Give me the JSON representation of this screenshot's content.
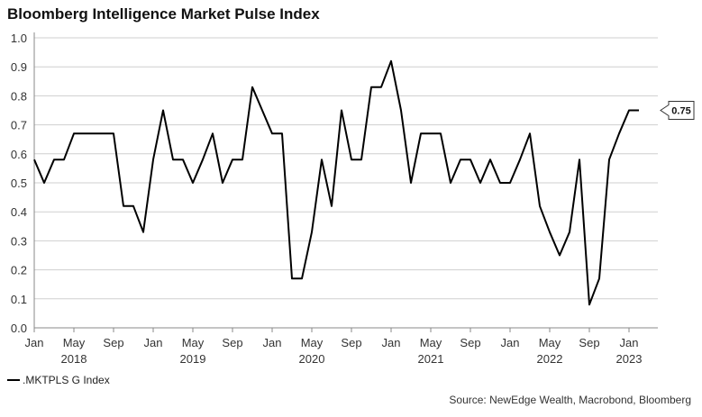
{
  "chart_data": {
    "type": "line",
    "title": "Bloomberg Intelligence Market Pulse Index",
    "xlabel": "",
    "ylabel": "",
    "ylim": [
      0.0,
      1.0
    ],
    "yticks": [
      "0.0",
      "0.1",
      "0.2",
      "0.3",
      "0.4",
      "0.5",
      "0.6",
      "0.7",
      "0.8",
      "0.9",
      "1.0"
    ],
    "x_month_ticks": [
      {
        "month": "2018-01",
        "label": "Jan"
      },
      {
        "month": "2018-05",
        "label": "May"
      },
      {
        "month": "2018-09",
        "label": "Sep"
      },
      {
        "month": "2019-01",
        "label": "Jan"
      },
      {
        "month": "2019-05",
        "label": "May"
      },
      {
        "month": "2019-09",
        "label": "Sep"
      },
      {
        "month": "2020-01",
        "label": "Jan"
      },
      {
        "month": "2020-05",
        "label": "May"
      },
      {
        "month": "2020-09",
        "label": "Sep"
      },
      {
        "month": "2021-01",
        "label": "Jan"
      },
      {
        "month": "2021-05",
        "label": "May"
      },
      {
        "month": "2021-09",
        "label": "Sep"
      },
      {
        "month": "2022-01",
        "label": "Jan"
      },
      {
        "month": "2022-05",
        "label": "May"
      },
      {
        "month": "2022-09",
        "label": "Sep"
      },
      {
        "month": "2023-01",
        "label": "Jan"
      }
    ],
    "x_year_labels": [
      {
        "month": "2018-05",
        "label": "2018"
      },
      {
        "month": "2019-05",
        "label": "2019"
      },
      {
        "month": "2020-05",
        "label": "2020"
      },
      {
        "month": "2021-05",
        "label": "2021"
      },
      {
        "month": "2022-05",
        "label": "2022"
      },
      {
        "month": "2023-01",
        "label": "2023"
      }
    ],
    "grid": true,
    "legend_position": "bottom-left",
    "series": [
      {
        "name": ".MKTPLS G Index",
        "color": "#000000",
        "x": [
          "2018-01",
          "2018-02",
          "2018-03",
          "2018-04",
          "2018-05",
          "2018-06",
          "2018-07",
          "2018-08",
          "2018-09",
          "2018-10",
          "2018-11",
          "2018-12",
          "2019-01",
          "2019-02",
          "2019-03",
          "2019-04",
          "2019-05",
          "2019-06",
          "2019-07",
          "2019-08",
          "2019-09",
          "2019-10",
          "2019-11",
          "2019-12",
          "2020-01",
          "2020-02",
          "2020-03",
          "2020-04",
          "2020-05",
          "2020-06",
          "2020-07",
          "2020-08",
          "2020-09",
          "2020-10",
          "2020-11",
          "2020-12",
          "2021-01",
          "2021-02",
          "2021-03",
          "2021-04",
          "2021-05",
          "2021-06",
          "2021-07",
          "2021-08",
          "2021-09",
          "2021-10",
          "2021-11",
          "2021-12",
          "2022-01",
          "2022-02",
          "2022-03",
          "2022-04",
          "2022-05",
          "2022-06",
          "2022-07",
          "2022-08",
          "2022-09",
          "2022-10",
          "2022-11",
          "2022-12",
          "2023-01",
          "2023-02"
        ],
        "values": [
          0.58,
          0.5,
          0.58,
          0.58,
          0.67,
          0.67,
          0.67,
          0.67,
          0.67,
          0.42,
          0.42,
          0.33,
          0.58,
          0.75,
          0.58,
          0.58,
          0.5,
          0.58,
          0.67,
          0.5,
          0.58,
          0.58,
          0.83,
          0.75,
          0.67,
          0.67,
          0.17,
          0.17,
          0.33,
          0.58,
          0.42,
          0.75,
          0.58,
          0.58,
          0.83,
          0.83,
          0.92,
          0.75,
          0.5,
          0.67,
          0.67,
          0.67,
          0.5,
          0.58,
          0.58,
          0.5,
          0.58,
          0.5,
          0.5,
          0.58,
          0.67,
          0.42,
          0.33,
          0.25,
          0.33,
          0.58,
          0.08,
          0.17,
          0.58,
          0.67,
          0.75,
          0.75
        ]
      }
    ],
    "annotations": [
      {
        "label": "0.75",
        "value": 0.75
      }
    ]
  },
  "legend": {
    "label": ".MKTPLS G Index"
  },
  "source": "Source: NewEdge Wealth, Macrobond, Bloomberg"
}
